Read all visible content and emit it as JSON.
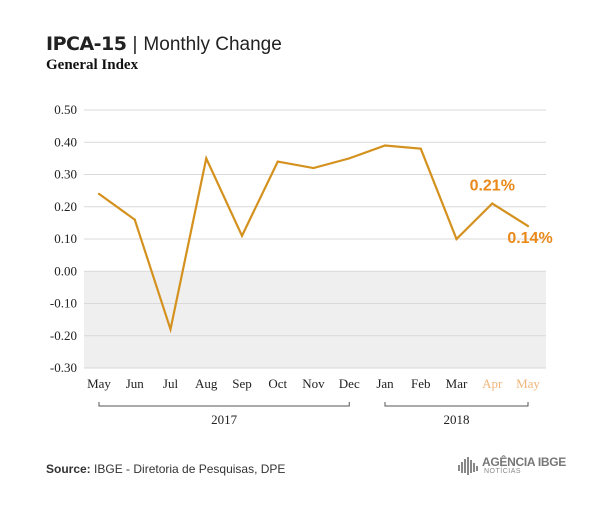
{
  "title": {
    "main": "IPCA-15",
    "separator": "|",
    "sub": "Monthly Change"
  },
  "subtitle": "General Index",
  "source": {
    "label": "Source:",
    "text": "IBGE - Diretoria de Pesquisas, DPE"
  },
  "logo": {
    "top": "AGÊNCIA IBGE",
    "bottom": "NOTÍCIAS"
  },
  "colors": {
    "line": "#D4911E",
    "highlight": "#E8891A",
    "highlight_light": "#F0B67A",
    "grid": "#d9d9d9",
    "negative_band": "#efefef",
    "text": "#222222"
  },
  "chart_data": {
    "type": "line",
    "categories": [
      "May",
      "Jun",
      "Jul",
      "Aug",
      "Sep",
      "Oct",
      "Nov",
      "Dec",
      "Jan",
      "Feb",
      "Mar",
      "Apr",
      "May"
    ],
    "values": [
      0.24,
      0.16,
      -0.18,
      0.35,
      0.11,
      0.34,
      0.32,
      0.35,
      0.39,
      0.38,
      0.1,
      0.21,
      0.14
    ],
    "ylim": [
      -0.3,
      0.5
    ],
    "yticks": [
      "0.50",
      "0.40",
      "0.30",
      "0.20",
      "0.10",
      "0.00",
      "-0.10",
      "-0.20",
      "-0.30"
    ],
    "grid": true,
    "highlighted_categories": [
      11,
      12
    ],
    "annotations": [
      {
        "index": 11,
        "label": "0.21%"
      },
      {
        "index": 12,
        "label": "0.14%"
      }
    ],
    "year_groups": [
      {
        "label": "2017",
        "from": 0,
        "to": 7
      },
      {
        "label": "2018",
        "from": 8,
        "to": 12
      }
    ]
  }
}
